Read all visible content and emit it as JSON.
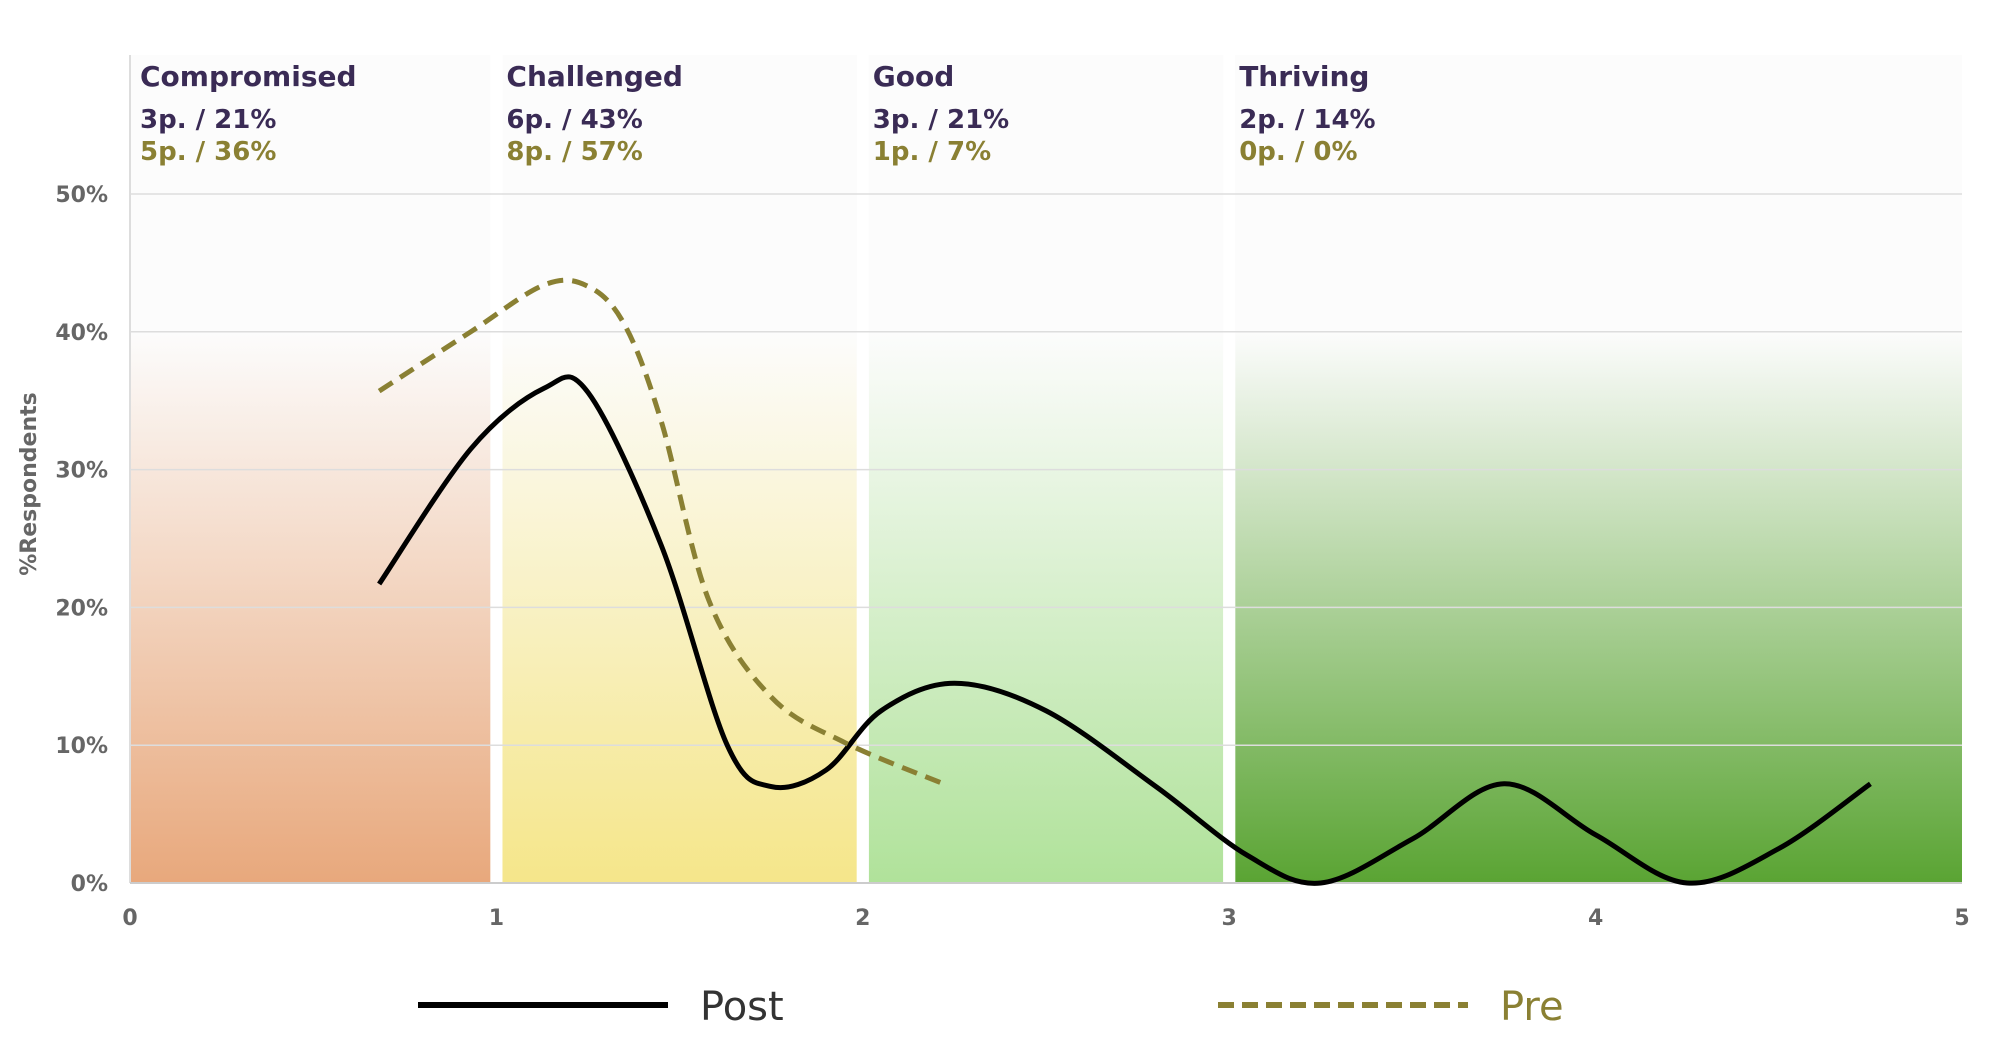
{
  "chart_data": {
    "type": "line",
    "ylabel": "%Respondents",
    "xlabel": "",
    "xlim": [
      0,
      5
    ],
    "ylim": [
      0,
      50
    ],
    "x_ticks": [
      "0",
      "1",
      "2",
      "3",
      "4",
      "5"
    ],
    "y_ticks": [
      "0%",
      "10%",
      "20%",
      "30%",
      "40%",
      "50%"
    ],
    "grid": true,
    "legend_position": "bottom",
    "zones": [
      {
        "name": "Compromised",
        "from": 0,
        "to": 1,
        "post": "3p. / 21%",
        "pre": "5p. / 36%",
        "color": "#e8a87c"
      },
      {
        "name": "Challenged",
        "from": 1,
        "to": 2,
        "post": "6p. / 43%",
        "pre": "8p. / 57%",
        "color": "#f5e68a"
      },
      {
        "name": "Good",
        "from": 2,
        "to": 3,
        "post": "3p. / 21%",
        "pre": "1p. / 7%",
        "color": "#b0e29a"
      },
      {
        "name": "Thriving",
        "from": 3,
        "to": 5,
        "post": "2p. / 14%",
        "pre": "0p. / 0%",
        "color": "#5aa433"
      }
    ],
    "series": [
      {
        "name": "Post",
        "color": "#000000",
        "dashed": false,
        "x": [
          0.68,
          0.93,
          1.13,
          1.25,
          1.45,
          1.63,
          1.75,
          1.9,
          2.05,
          2.25,
          2.5,
          2.8,
          3.05,
          3.25,
          3.5,
          3.75,
          4.0,
          4.25,
          4.5,
          4.75
        ],
        "y": [
          21.7,
          31.5,
          35.9,
          35.6,
          24.5,
          10.0,
          7.0,
          8.2,
          12.5,
          14.5,
          12.5,
          7.0,
          2.0,
          0.0,
          3.2,
          7.2,
          3.5,
          0.0,
          2.5,
          7.2
        ]
      },
      {
        "name": "Pre",
        "color": "#8a8033",
        "dashed": true,
        "x": [
          0.68,
          0.93,
          1.13,
          1.25,
          1.35,
          1.45,
          1.58,
          1.75,
          1.95,
          2.22
        ],
        "y": [
          35.7,
          40.0,
          43.4,
          43.3,
          40.5,
          33.5,
          20.5,
          13.5,
          10.2,
          7.2
        ]
      }
    ]
  },
  "colors": {
    "zone_name": "#3a2b55",
    "post_stat": "#3a2b55",
    "pre_stat": "#8a8033",
    "grid": "#dddddd",
    "tick_text": "#666666"
  }
}
